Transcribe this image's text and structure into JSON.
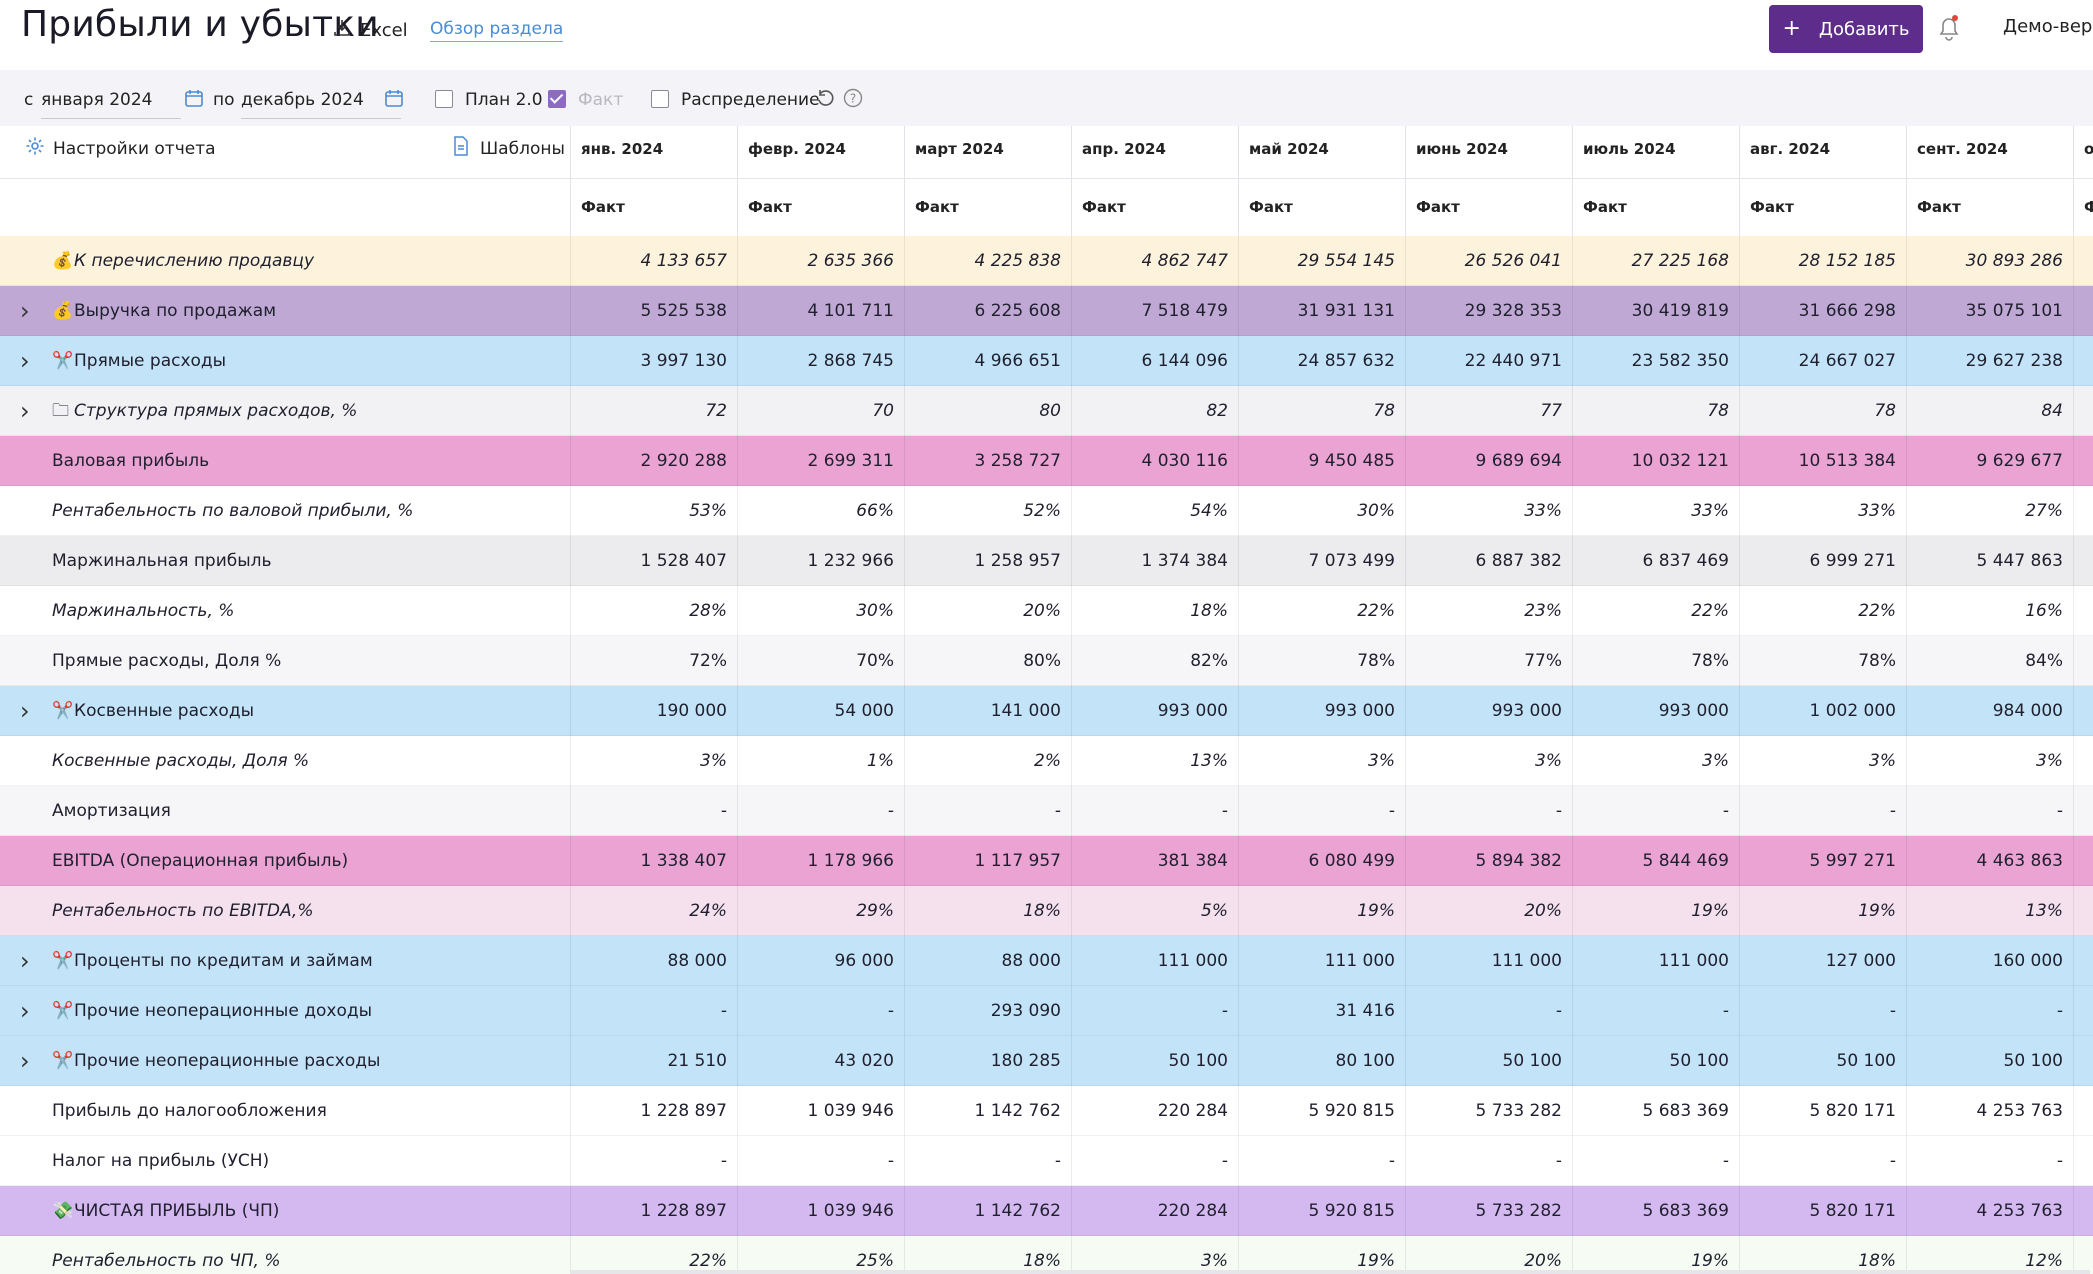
{
  "header": {
    "title": "Прибыли и убытки",
    "excel_label": "Excel",
    "overview_link": "Обзор раздела",
    "add_button": "Добавить",
    "demo_label": "Демо-верс"
  },
  "filters": {
    "from_label": "с",
    "from_value": "января 2024",
    "to_label": "по",
    "to_value": "декабрь 2024",
    "plan_label": "План 2.0",
    "plan_checked": false,
    "fact_label": "Факт",
    "fact_checked": true,
    "distribution_label": "Распределение",
    "distribution_checked": false
  },
  "table": {
    "settings_label": "Настройки отчета",
    "templates_label": "Шаблоны",
    "columns": [
      "янв. 2024",
      "февр. 2024",
      "март 2024",
      "апр. 2024",
      "май 2024",
      "июнь 2024",
      "июль 2024",
      "авг. 2024",
      "сент. 2024",
      "о"
    ],
    "subheader": [
      "Факт",
      "Факт",
      "Факт",
      "Факт",
      "Факт",
      "Факт",
      "Факт",
      "Факт",
      "Факт",
      "Ф"
    ],
    "rows": [
      {
        "label": "К перечислению продавцу",
        "icon": "💰",
        "bg": "#fdf3dc",
        "italic": true,
        "bold_values": false,
        "expand": false,
        "values": [
          "4 133 657",
          "2 635 366",
          "4 225 838",
          "4 862 747",
          "29 554 145",
          "26 526 041",
          "27 225 168",
          "28 152 185",
          "30 893 286"
        ]
      },
      {
        "label": "Выручка по продажам",
        "icon": "💰",
        "bg": "#bfa8d4",
        "italic": false,
        "expand": true,
        "values": [
          "5 525 538",
          "4 101 711",
          "6 225 608",
          "7 518 479",
          "31 931 131",
          "29 328 353",
          "30 419 819",
          "31 666 298",
          "35 075 101"
        ]
      },
      {
        "label": "Прямые расходы",
        "icon": "✂️",
        "bg": "#c3e4f8",
        "italic": false,
        "expand": true,
        "values": [
          "3 997 130",
          "2 868 745",
          "4 966 651",
          "6 144 096",
          "24 857 632",
          "22 440 971",
          "23 582 350",
          "24 667 027",
          "29 627 238"
        ]
      },
      {
        "label": "Структура прямых расходов, %",
        "icon": "🗀",
        "bg": "#f2f2f5",
        "italic": true,
        "expand": true,
        "values": [
          "72",
          "70",
          "80",
          "82",
          "78",
          "77",
          "78",
          "78",
          "84"
        ]
      },
      {
        "label": "Валовая прибыль",
        "icon": "",
        "bg": "#eaa3d3",
        "italic": false,
        "expand": false,
        "values": [
          "2 920 288",
          "2 699 311",
          "3 258 727",
          "4 030 116",
          "9 450 485",
          "9 689 694",
          "10 032 121",
          "10 513 384",
          "9 629 677"
        ]
      },
      {
        "label": "Рентабельность по валовой прибыли, %",
        "icon": "",
        "bg": "#ffffff",
        "italic": true,
        "expand": false,
        "values": [
          "53%",
          "66%",
          "52%",
          "54%",
          "30%",
          "33%",
          "33%",
          "33%",
          "27%"
        ]
      },
      {
        "label": "Маржинальная прибыль",
        "icon": "",
        "bg": "#ececef",
        "italic": false,
        "expand": false,
        "values": [
          "1 528 407",
          "1 232 966",
          "1 258 957",
          "1 374 384",
          "7 073 499",
          "6 887 382",
          "6 837 469",
          "6 999 271",
          "5 447 863"
        ]
      },
      {
        "label": "Маржинальность, %",
        "icon": "",
        "bg": "#ffffff",
        "italic": true,
        "expand": false,
        "values": [
          "28%",
          "30%",
          "20%",
          "18%",
          "22%",
          "23%",
          "22%",
          "22%",
          "16%"
        ]
      },
      {
        "label": "Прямые расходы, Доля %",
        "icon": "",
        "bg": "#f6f6f8",
        "italic": false,
        "expand": false,
        "values": [
          "72%",
          "70%",
          "80%",
          "82%",
          "78%",
          "77%",
          "78%",
          "78%",
          "84%"
        ]
      },
      {
        "label": "Косвенные расходы",
        "icon": "✂️",
        "bg": "#c3e4f8",
        "italic": false,
        "expand": true,
        "values": [
          "190 000",
          "54 000",
          "141 000",
          "993 000",
          "993 000",
          "993 000",
          "993 000",
          "1 002 000",
          "984 000"
        ]
      },
      {
        "label": "Косвенные расходы, Доля %",
        "icon": "",
        "bg": "#ffffff",
        "italic": true,
        "expand": false,
        "values": [
          "3%",
          "1%",
          "2%",
          "13%",
          "3%",
          "3%",
          "3%",
          "3%",
          "3%"
        ]
      },
      {
        "label": "Амортизация",
        "icon": "",
        "bg": "#f6f6f8",
        "italic": false,
        "expand": false,
        "values": [
          "-",
          "-",
          "-",
          "-",
          "-",
          "-",
          "-",
          "-",
          "-"
        ]
      },
      {
        "label": "EBITDA (Операционная прибыль)",
        "icon": "",
        "bg": "#eaa3d3",
        "italic": false,
        "expand": false,
        "values": [
          "1 338 407",
          "1 178 966",
          "1 117 957",
          "381 384",
          "6 080 499",
          "5 894 382",
          "5 844 469",
          "5 997 271",
          "4 463 863"
        ]
      },
      {
        "label": "Рентабельность по EBITDA,%",
        "icon": "",
        "bg": "#f5e0ee",
        "italic": true,
        "expand": false,
        "values": [
          "24%",
          "29%",
          "18%",
          "5%",
          "19%",
          "20%",
          "19%",
          "19%",
          "13%"
        ]
      },
      {
        "label": "Проценты по кредитам и займам",
        "icon": "✂️",
        "bg": "#c3e4f8",
        "italic": false,
        "expand": true,
        "values": [
          "88 000",
          "96 000",
          "88 000",
          "111 000",
          "111 000",
          "111 000",
          "111 000",
          "127 000",
          "160 000"
        ]
      },
      {
        "label": "Прочие неоперационные доходы",
        "icon": "✂️",
        "bg": "#c3e4f8",
        "italic": false,
        "expand": true,
        "values": [
          "-",
          "-",
          "293 090",
          "-",
          "31 416",
          "-",
          "-",
          "-",
          "-"
        ]
      },
      {
        "label": "Прочие неоперационные расходы",
        "icon": "✂️",
        "bg": "#c3e4f8",
        "italic": false,
        "expand": true,
        "values": [
          "21 510",
          "43 020",
          "180 285",
          "50 100",
          "80 100",
          "50 100",
          "50 100",
          "50 100",
          "50 100"
        ]
      },
      {
        "label": "Прибыль до налогообложения",
        "icon": "",
        "bg": "#ffffff",
        "italic": false,
        "expand": false,
        "values": [
          "1 228 897",
          "1 039 946",
          "1 142 762",
          "220 284",
          "5 920 815",
          "5 733 282",
          "5 683 369",
          "5 820 171",
          "4 253 763"
        ]
      },
      {
        "label": "Налог на прибыль (УСН)",
        "icon": "",
        "bg": "#ffffff",
        "italic": false,
        "expand": false,
        "values": [
          "-",
          "-",
          "-",
          "-",
          "-",
          "-",
          "-",
          "-",
          "-"
        ]
      },
      {
        "label": "ЧИСТАЯ ПРИБЫЛЬ (ЧП)",
        "icon": "💸",
        "bg": "#d4b8f0",
        "italic": false,
        "expand": false,
        "values": [
          "1 228 897",
          "1 039 946",
          "1 142 762",
          "220 284",
          "5 920 815",
          "5 733 282",
          "5 683 369",
          "5 820 171",
          "4 253 763"
        ]
      },
      {
        "label": "Рентабельность по ЧП, %",
        "icon": "",
        "bg": "#f6fbf3",
        "italic": true,
        "expand": false,
        "values": [
          "22%",
          "25%",
          "18%",
          "3%",
          "19%",
          "20%",
          "19%",
          "18%",
          "12%"
        ]
      }
    ]
  }
}
